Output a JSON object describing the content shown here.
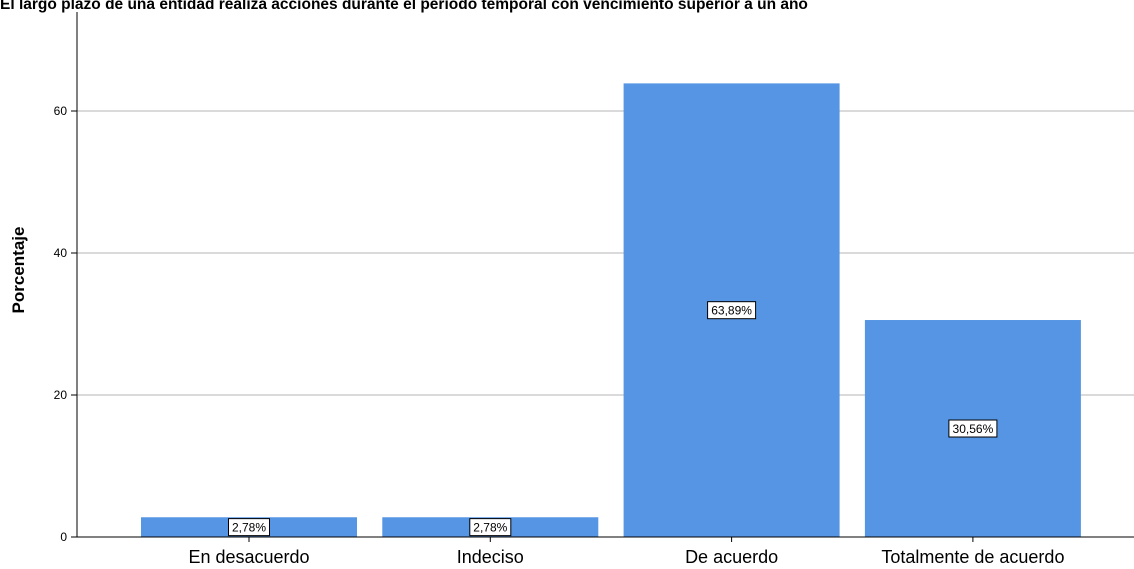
{
  "chart_data": {
    "type": "bar",
    "title": "El largo plazo de una entidad realiza acciones durante el periodo temporal con vencimiento superior a un año",
    "xlabel": "",
    "ylabel": "Porcentaje",
    "categories": [
      "En desacuerdo",
      "Indeciso",
      "De acuerdo",
      "Totalmente de acuerdo"
    ],
    "values": [
      2.78,
      2.78,
      63.89,
      30.56
    ],
    "data_labels": [
      "2,78%",
      "2,78%",
      "63,89%",
      "30,56%"
    ],
    "ylim": [
      0,
      71
    ],
    "yticks": [
      0,
      20,
      40,
      60
    ],
    "grid": true,
    "colors": {
      "bar": "#5595e3",
      "grid": "#b4b4b4",
      "axis": "#000000"
    }
  }
}
